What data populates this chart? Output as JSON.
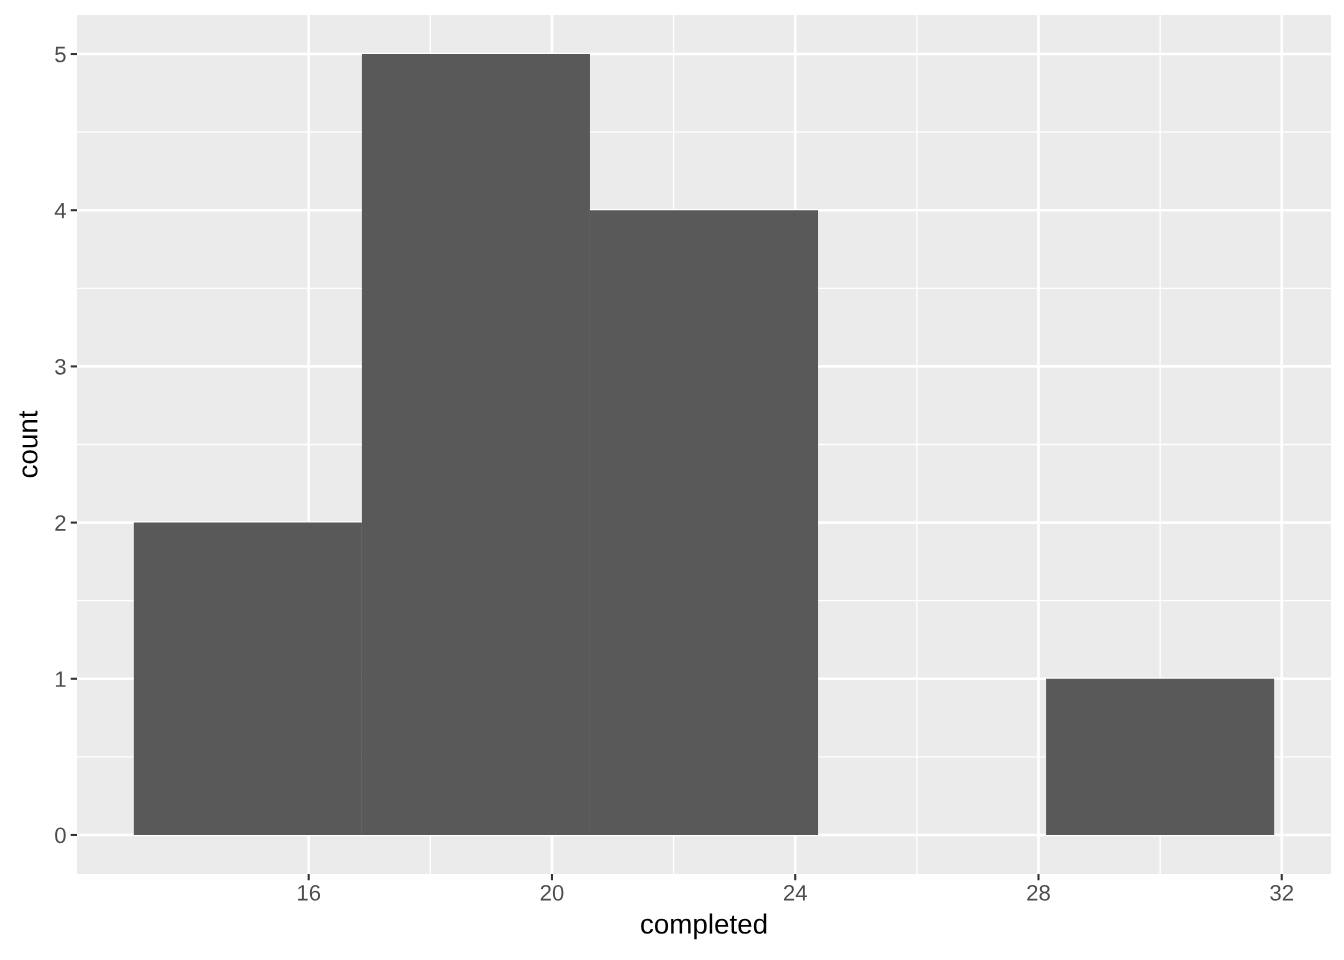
{
  "chart_data": {
    "type": "histogram",
    "xlabel": "completed",
    "ylabel": "count",
    "bins": [
      13.125,
      16.875,
      20.625,
      24.375,
      28.125,
      31.875
    ],
    "values": [
      2,
      5,
      4,
      0,
      1
    ],
    "color": "#595959",
    "xlim": [
      12.19,
      32.81
    ],
    "ylim": [
      -0.25,
      5.25
    ],
    "xticks": [
      16,
      20,
      24,
      28,
      32
    ],
    "yticks": [
      0,
      1,
      2,
      3,
      4,
      5
    ],
    "grid": true
  }
}
